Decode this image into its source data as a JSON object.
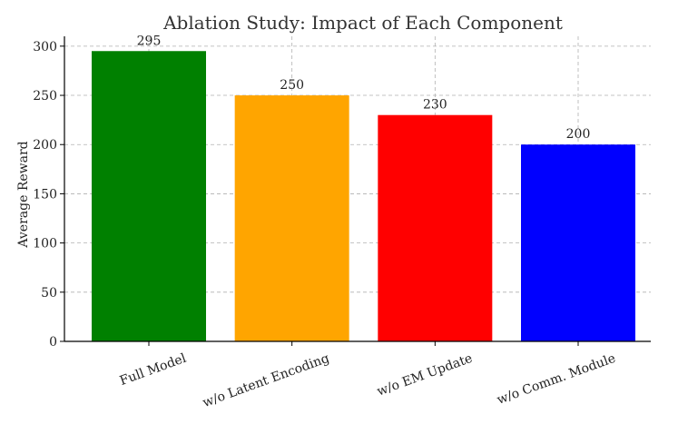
{
  "chart_data": {
    "type": "bar",
    "title": "Ablation Study: Impact of Each Component",
    "xlabel": "",
    "ylabel": "Average Reward",
    "categories": [
      "Full Model",
      "w/o Latent Encoding",
      "w/o EM Update",
      "w/o Comm. Module"
    ],
    "values": [
      295,
      250,
      230,
      200
    ],
    "value_labels": [
      "295",
      "250",
      "230",
      "200"
    ],
    "colors": [
      "#008000",
      "#FFA500",
      "#FF0000",
      "#0000FF"
    ],
    "ylim": [
      0,
      310
    ],
    "yticks": [
      0,
      50,
      100,
      150,
      200,
      250,
      300
    ],
    "grid": true,
    "x_tick_rotation_deg": -20
  }
}
